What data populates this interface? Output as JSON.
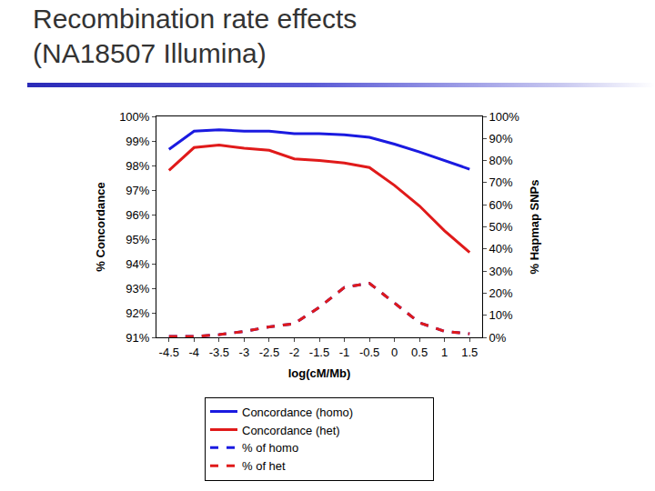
{
  "chart_data": {
    "type": "line",
    "title": "Recombination rate effects\n(NA18507 Illumina)",
    "x_label": "log(cM/Mb)",
    "y_label": "% Concordance",
    "y2_label": "% Hapmap SNPs",
    "x": [
      -4.5,
      -4,
      -3.5,
      -3,
      -2.5,
      -2,
      -1.5,
      -1,
      -0.5,
      0,
      0.5,
      1,
      1.5
    ],
    "xlim": [
      -4.75,
      1.75
    ],
    "xticks": [
      -4.5,
      -4,
      -3.5,
      -3,
      -2.5,
      -2,
      -1.5,
      -1,
      -0.5,
      0,
      0.5,
      1,
      1.5
    ],
    "ylim": [
      91,
      100
    ],
    "yticks": [
      {
        "value": 91,
        "label": "91%"
      },
      {
        "value": 92,
        "label": "92%"
      },
      {
        "value": 93,
        "label": "93%"
      },
      {
        "value": 94,
        "label": "94%"
      },
      {
        "value": 95,
        "label": "95%"
      },
      {
        "value": 96,
        "label": "96%"
      },
      {
        "value": 97,
        "label": "97%"
      },
      {
        "value": 98,
        "label": "98%"
      },
      {
        "value": 99,
        "label": "99%"
      },
      {
        "value": 100,
        "label": "100%"
      }
    ],
    "y2lim": [
      0,
      100
    ],
    "y2ticks": [
      {
        "value": 0,
        "label": "0%"
      },
      {
        "value": 10,
        "label": "10%"
      },
      {
        "value": 20,
        "label": "20%"
      },
      {
        "value": 30,
        "label": "30%"
      },
      {
        "value": 40,
        "label": "40%"
      },
      {
        "value": 50,
        "label": "50%"
      },
      {
        "value": 60,
        "label": "60%"
      },
      {
        "value": 70,
        "label": "70%"
      },
      {
        "value": 80,
        "label": "80%"
      },
      {
        "value": 90,
        "label": "90%"
      },
      {
        "value": 100,
        "label": "100%"
      }
    ],
    "grid": false,
    "legend": "bottom",
    "series": [
      {
        "name": "Concordance (homo)",
        "color": "#1a1ae0",
        "line_style": "solid",
        "values": [
          98.66,
          99.4,
          99.45,
          99.4,
          99.4,
          99.3,
          99.3,
          99.25,
          99.15,
          98.87,
          98.55,
          98.2,
          97.85
        ]
      },
      {
        "name": "Concordance (het)",
        "color": "#e01a1a",
        "line_style": "solid",
        "values": [
          97.8,
          98.73,
          98.83,
          98.7,
          98.62,
          98.27,
          98.2,
          98.1,
          97.92,
          97.19,
          96.35,
          95.34,
          94.46
        ]
      },
      {
        "name": "% of homo",
        "color": "#1a1ae0",
        "line_style": "dash",
        "axis": "y2",
        "values": [
          0.4,
          0.4,
          1.2,
          2.7,
          4.7,
          6.2,
          13.6,
          22.6,
          24.5,
          15.6,
          6.6,
          2.7,
          1.6
        ]
      },
      {
        "name": "% of het",
        "color": "#e01a1a",
        "line_style": "dash",
        "axis": "y2",
        "values": [
          0.4,
          0.4,
          1.2,
          2.7,
          4.7,
          6.2,
          13.6,
          22.6,
          24.5,
          15.6,
          6.6,
          2.7,
          1.6
        ]
      }
    ]
  }
}
